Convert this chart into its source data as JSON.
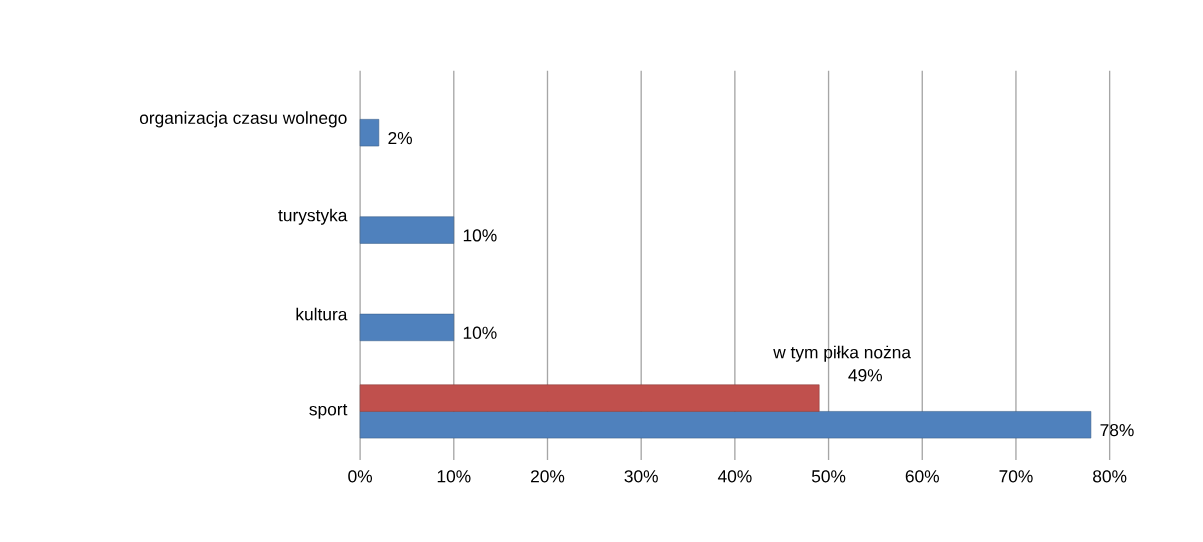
{
  "chart_data": {
    "type": "bar",
    "orientation": "horizontal",
    "categories": [
      "organizacja czasu wolnego",
      "turystyka",
      "kultura",
      "sport"
    ],
    "series": [
      {
        "color": "#4f81bd",
        "values": [
          2,
          10,
          10,
          78
        ],
        "value_labels": [
          "2%",
          "10%",
          "10%",
          "78%"
        ]
      },
      {
        "name": "w tym piłka nożna",
        "color": "#c0504d",
        "values": [
          null,
          null,
          null,
          49
        ],
        "value_labels": [
          null,
          null,
          null,
          "49%"
        ]
      }
    ],
    "xlim": [
      0,
      80
    ],
    "xticks": [
      {
        "value": 0,
        "label": "0%"
      },
      {
        "value": 10,
        "label": "10%"
      },
      {
        "value": 20,
        "label": "20%"
      },
      {
        "value": 30,
        "label": "30%"
      },
      {
        "value": 40,
        "label": "40%"
      },
      {
        "value": 50,
        "label": "50%"
      },
      {
        "value": 60,
        "label": "60%"
      },
      {
        "value": 70,
        "label": "70%"
      },
      {
        "value": 80,
        "label": "80%"
      }
    ],
    "grid": "x"
  }
}
